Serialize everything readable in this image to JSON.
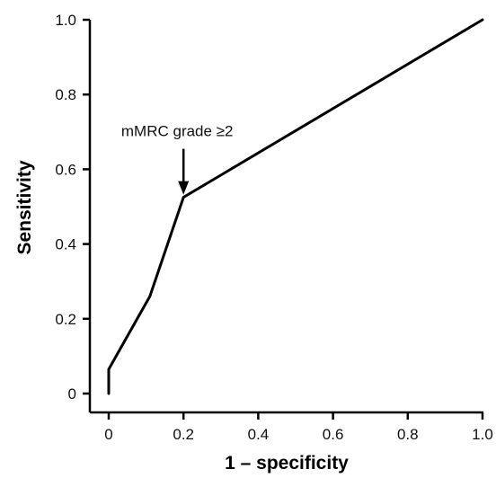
{
  "chart_data": {
    "type": "line",
    "title": "",
    "xlabel": "1 – specificity",
    "ylabel": "Sensitivity",
    "xlim": [
      0,
      1
    ],
    "ylim": [
      0,
      1
    ],
    "x_ticks": [
      0,
      0.2,
      0.4,
      0.6,
      0.8,
      1.0
    ],
    "x_tick_labels": [
      "0",
      "0.2",
      "0.4",
      "0.6",
      "0.8",
      "1.0"
    ],
    "y_ticks": [
      0,
      0.2,
      0.4,
      0.6,
      0.8,
      1.0
    ],
    "y_tick_labels": [
      "0",
      "0.2",
      "0.4",
      "0.6",
      "0.8",
      "1.0"
    ],
    "grid": false,
    "legend": "none",
    "series": [
      {
        "x": [
          0.0,
          0.0,
          0.11,
          0.2,
          1.0
        ],
        "y": [
          0.0,
          0.065,
          0.26,
          0.525,
          1.0
        ]
      }
    ],
    "annotations": [
      {
        "text": "mMRC grade ≥2",
        "x": 0.2,
        "y": 0.525,
        "arrow": true
      }
    ],
    "colors": {
      "line": "#000000",
      "axis": "#000000"
    }
  }
}
